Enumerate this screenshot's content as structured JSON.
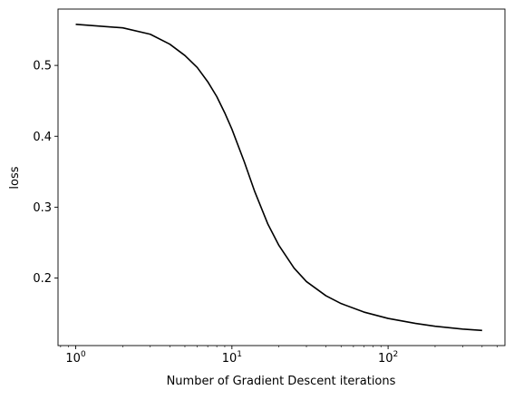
{
  "chart_data": {
    "type": "line",
    "title": "",
    "xlabel": "Number of Gradient Descent iterations",
    "ylabel": "loss",
    "xscale": "log",
    "xlim": [
      0.77,
      560
    ],
    "ylim": [
      0.1047,
      0.5795
    ],
    "grid": false,
    "xticks": [
      {
        "value": 1,
        "base": "10",
        "exp": "0"
      },
      {
        "value": 10,
        "base": "10",
        "exp": "1"
      },
      {
        "value": 100,
        "base": "10",
        "exp": "2"
      }
    ],
    "yticks": [
      {
        "value": 0.2,
        "label": "0.2"
      },
      {
        "value": 0.3,
        "label": "0.3"
      },
      {
        "value": 0.4,
        "label": "0.4"
      },
      {
        "value": 0.5,
        "label": "0.5"
      }
    ],
    "line_color": "#000000",
    "series": [
      {
        "x": [
          1,
          2,
          3,
          4,
          5,
          6,
          7,
          8,
          9,
          10,
          12,
          14,
          17,
          20,
          25,
          30,
          40,
          50,
          70,
          100,
          150,
          200,
          300,
          400
        ],
        "y": [
          0.558,
          0.553,
          0.544,
          0.53,
          0.514,
          0.497,
          0.477,
          0.456,
          0.433,
          0.41,
          0.364,
          0.322,
          0.276,
          0.246,
          0.214,
          0.195,
          0.175,
          0.164,
          0.152,
          0.143,
          0.136,
          0.132,
          0.128,
          0.126
        ]
      }
    ]
  }
}
